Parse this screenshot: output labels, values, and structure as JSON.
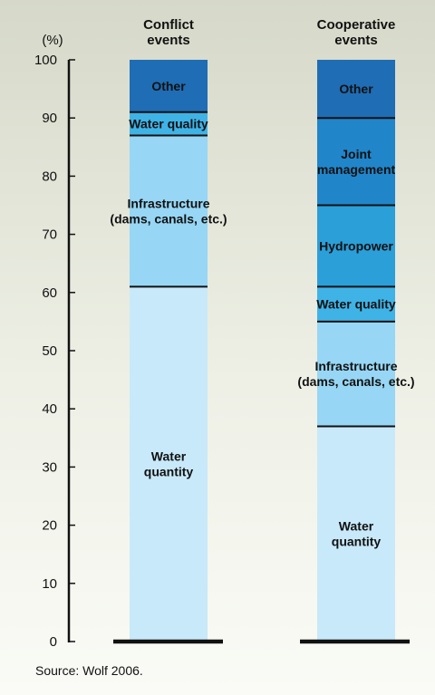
{
  "chart_data": {
    "type": "stacked-bar",
    "unit_label": "(%)",
    "ylim": [
      0,
      100
    ],
    "yticks": [
      0,
      10,
      20,
      30,
      40,
      50,
      60,
      70,
      80,
      90,
      100
    ],
    "grid": false,
    "colors": {
      "water_quantity": "#c8e9f9",
      "infrastructure": "#97d6f4",
      "water_quality": "#3fb3e6",
      "hydropower": "#2b9fd8",
      "joint_management": "#2185c9",
      "other": "#1f6db4"
    },
    "bars": [
      {
        "name": "Conflict events",
        "header_lines": [
          "Conflict",
          "events"
        ],
        "segments": [
          {
            "key": "water_quantity",
            "lines": [
              "Water",
              "quantity"
            ],
            "start": 0,
            "end": 61
          },
          {
            "key": "infrastructure",
            "lines": [
              "Infrastructure",
              "(dams, canals, etc.)"
            ],
            "start": 61,
            "end": 87
          },
          {
            "key": "water_quality",
            "lines": [
              "Water quality"
            ],
            "start": 87,
            "end": 91
          },
          {
            "key": "other",
            "lines": [
              "Other"
            ],
            "start": 91,
            "end": 100
          }
        ]
      },
      {
        "name": "Cooperative events",
        "header_lines": [
          "Cooperative",
          "events"
        ],
        "segments": [
          {
            "key": "water_quantity",
            "lines": [
              "Water",
              "quantity"
            ],
            "start": 0,
            "end": 37
          },
          {
            "key": "infrastructure",
            "lines": [
              "Infrastructure",
              "(dams, canals, etc.)"
            ],
            "start": 37,
            "end": 55
          },
          {
            "key": "water_quality",
            "lines": [
              "Water quality"
            ],
            "start": 55,
            "end": 61
          },
          {
            "key": "hydropower",
            "lines": [
              "Hydropower"
            ],
            "start": 61,
            "end": 75
          },
          {
            "key": "joint_management",
            "lines": [
              "Joint",
              "management"
            ],
            "start": 75,
            "end": 90
          },
          {
            "key": "other",
            "lines": [
              "Other"
            ],
            "start": 90,
            "end": 100
          }
        ]
      }
    ]
  },
  "source": "Source: Wolf 2006."
}
